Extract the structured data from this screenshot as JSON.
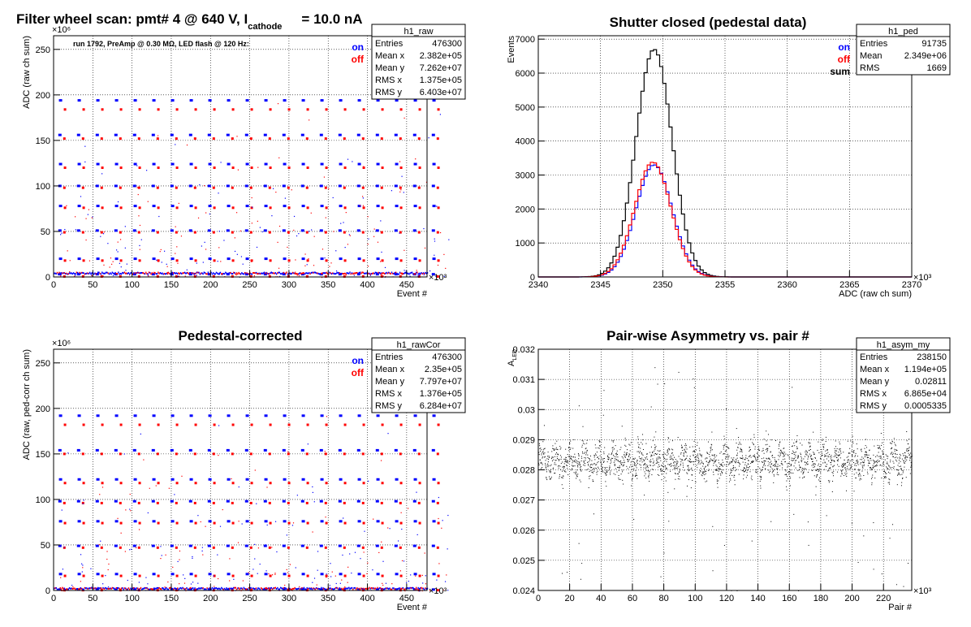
{
  "colors": {
    "on": "#0000ff",
    "off": "#ff0000",
    "sum": "#000000",
    "grid": "#000000",
    "frame": "#000000"
  },
  "panels": {
    "raw": {
      "title_main": "Filter wheel scan: pmt#   4 @   640 V, I",
      "title_sub": "cathode",
      "title_end": "= 10.0 nA",
      "subtitle": "run 1792, PreAmp @ 0.30 MΩ, LED flash @  120 Hz:",
      "legend": [
        "on",
        "off"
      ],
      "stats": {
        "name": "h1_raw",
        "rows": [
          [
            "Entries",
            "476300"
          ],
          [
            "Mean x",
            "2.382e+05"
          ],
          [
            "Mean y",
            "7.262e+07"
          ],
          [
            "RMS x",
            "1.375e+05"
          ],
          [
            "RMS y",
            "6.403e+07"
          ]
        ]
      }
    },
    "ped": {
      "title": "Shutter closed (pedestal data)",
      "legend": [
        "on",
        "off",
        "sum"
      ],
      "stats": {
        "name": "h1_ped",
        "rows": [
          [
            "Entries",
            "91735"
          ],
          [
            "Mean",
            "2.349e+06"
          ],
          [
            "RMS",
            "1669"
          ]
        ]
      }
    },
    "cor": {
      "title": "Pedestal-corrected",
      "legend": [
        "on",
        "off"
      ],
      "stats": {
        "name": "h1_rawCor",
        "rows": [
          [
            "Entries",
            "476300"
          ],
          [
            "Mean x",
            "2.35e+05"
          ],
          [
            "Mean y",
            "7.797e+07"
          ],
          [
            "RMS x",
            "1.376e+05"
          ],
          [
            "RMS y",
            "6.284e+07"
          ]
        ]
      }
    },
    "asym": {
      "title": "Pair-wise Asymmetry vs. pair #",
      "stats": {
        "name": "h1_asym_my",
        "rows": [
          [
            "Entries",
            "238150"
          ],
          [
            "Mean x",
            "1.194e+05"
          ],
          [
            "Mean y",
            "0.02811"
          ],
          [
            "RMS x",
            "6.865e+04"
          ],
          [
            "RMS y",
            "0.0005335"
          ]
        ]
      }
    }
  },
  "chart_data": [
    {
      "type": "scatter",
      "id": "raw",
      "xlabel": "Event #",
      "ylabel": "ADC (raw ch sum)",
      "x_multiplier": "×10³",
      "y_multiplier": "×10⁶",
      "xlim": [
        0,
        476
      ],
      "ylim": [
        0,
        265
      ],
      "xticks": [
        0,
        50,
        100,
        150,
        200,
        250,
        300,
        350,
        400,
        450
      ],
      "yticks": [
        0,
        50,
        100,
        150,
        200,
        250
      ],
      "levels_on": [
        3,
        20,
        51,
        78,
        100,
        124,
        156,
        194
      ],
      "levels_off": [
        0.5,
        18,
        49,
        76,
        98,
        120,
        152,
        184
      ],
      "period": 23.8,
      "grid": true
    },
    {
      "type": "line",
      "id": "ped",
      "xlabel": "ADC (raw ch sum)",
      "ylabel": "Events",
      "x_multiplier": "×10³",
      "xlim": [
        2340,
        2370
      ],
      "ylim": [
        0,
        7100
      ],
      "xticks": [
        2340,
        2345,
        2350,
        2355,
        2360,
        2365,
        2370
      ],
      "yticks": [
        0,
        1000,
        2000,
        3000,
        4000,
        5000,
        6000,
        7000
      ],
      "series": [
        {
          "name": "sum",
          "mean": 2349.3,
          "sigma": 1.45,
          "peak": 6700
        },
        {
          "name": "on",
          "mean": 2349.3,
          "sigma": 1.45,
          "peak": 3300
        },
        {
          "name": "off",
          "mean": 2349.2,
          "sigma": 1.45,
          "peak": 3380
        }
      ],
      "grid": true
    },
    {
      "type": "scatter",
      "id": "cor",
      "xlabel": "Event #",
      "ylabel": "ADC (raw, ped-corr ch sum)",
      "x_multiplier": "×10³",
      "y_multiplier": "×10⁶",
      "xlim": [
        0,
        476
      ],
      "ylim": [
        0,
        265
      ],
      "xticks": [
        0,
        50,
        100,
        150,
        200,
        250,
        300,
        350,
        400,
        450
      ],
      "yticks": [
        0,
        50,
        100,
        150,
        200,
        250
      ],
      "levels_on": [
        1,
        18,
        49,
        76,
        98,
        122,
        154,
        192
      ],
      "levels_off": [
        0.3,
        16,
        47,
        74,
        96,
        118,
        150,
        182
      ],
      "period": 23.8,
      "grid": true
    },
    {
      "type": "scatter",
      "id": "asym",
      "xlabel": "Pair #",
      "ylabel": "A_LED",
      "x_multiplier": "×10³",
      "xlim": [
        0,
        238
      ],
      "ylim": [
        0.024,
        0.032
      ],
      "xticks": [
        0,
        20,
        40,
        60,
        80,
        100,
        120,
        140,
        160,
        180,
        200,
        220
      ],
      "yticks": [
        0.024,
        0.025,
        0.026,
        0.027,
        0.028,
        0.029,
        0.03,
        0.031,
        0.032
      ],
      "band_center": 0.0283,
      "band_halfwidth": 0.0005,
      "grid": true
    }
  ]
}
